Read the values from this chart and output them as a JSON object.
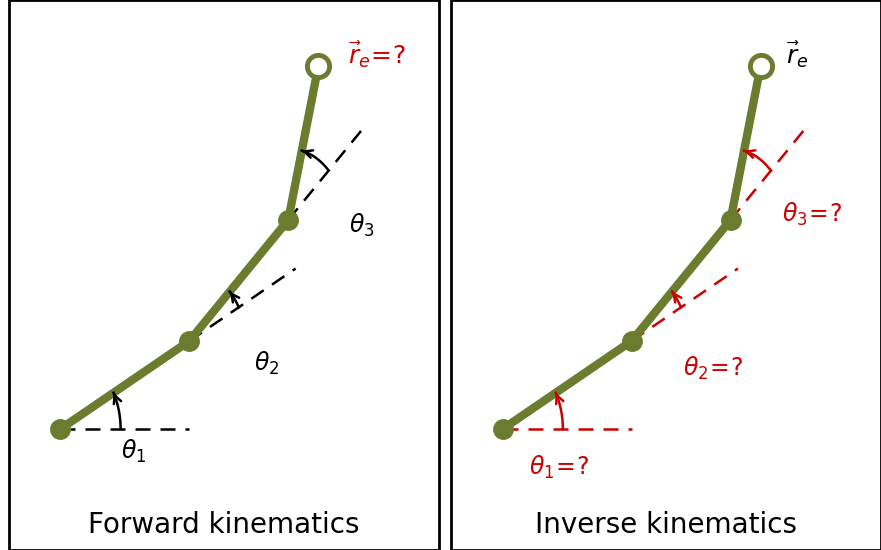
{
  "fig_width": 8.81,
  "fig_height": 5.5,
  "background_color": "#ffffff",
  "arm_color": "#6b7c2e",
  "arm_linewidth": 6,
  "joint_color": "#6b7c2e",
  "dashed_color_fk": "#000000",
  "dashed_color_ik": "#cc0000",
  "arrow_color_fk": "#000000",
  "arrow_color_ik": "#cc0000",
  "label_color_fk": "#000000",
  "label_color_ik": "#cc0000",
  "re_color_fk": "#cc0000",
  "re_color_ik": "#000000",
  "title_fk": "Forward kinematics",
  "title_ik": "Inverse kinematics",
  "title_fontsize": 20,
  "label_fontsize": 17,
  "p0": [
    0.12,
    0.22
  ],
  "p1": [
    0.42,
    0.38
  ],
  "p2": [
    0.65,
    0.6
  ],
  "p3": [
    0.72,
    0.88
  ],
  "xlim": [
    0.0,
    1.0
  ],
  "ylim": [
    0.0,
    1.0
  ]
}
